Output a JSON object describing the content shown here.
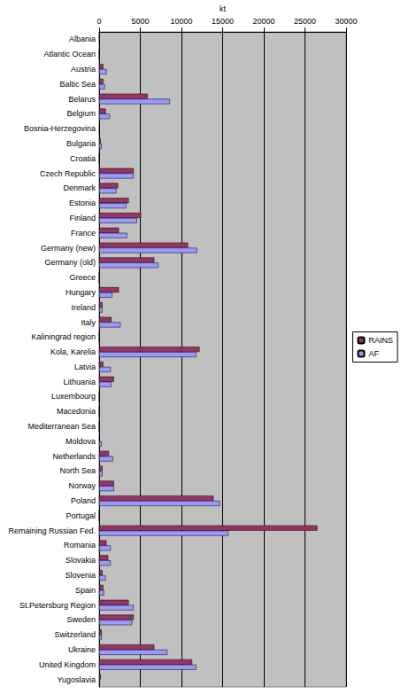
{
  "chart_data": {
    "type": "bar",
    "orientation": "horizontal",
    "xlabel": "kt",
    "categories": [
      "Albania",
      "Atlantic Ocean",
      "Austria",
      "Baltic Sea",
      "Belarus",
      "Belgium",
      "Bosnia-Herzegovina",
      "Bulgaria",
      "Croatia",
      "Czech Republic",
      "Denmark",
      "Estonia",
      "Finland",
      "France",
      "Germany (new)",
      "Germany (old)",
      "Greece",
      "Hungary",
      "Ireland",
      "Italy",
      "Kaliningrad region",
      "Kola, Karelia",
      "Latvia",
      "Lithuania",
      "Luxembourg",
      "Macedonia",
      "Mediterranean Sea",
      "Moldova",
      "Netherlands",
      "North Sea",
      "Norway",
      "Poland",
      "Portugal",
      "Remaining Russian Fed.",
      "Romania",
      "Slovakia",
      "Slovenia",
      "Spain",
      "St.Petersburg Region",
      "Sweden",
      "Switzerland",
      "Ukraine",
      "United Kingdom",
      "Yugoslavia"
    ],
    "series": [
      {
        "name": "RAINS",
        "color": "#993366",
        "values": [
          30,
          0,
          500,
          500,
          5900,
          800,
          50,
          200,
          0,
          4200,
          2300,
          3600,
          5100,
          2400,
          10800,
          6700,
          0,
          2400,
          400,
          1500,
          0,
          12200,
          500,
          1800,
          0,
          0,
          0,
          50,
          1200,
          400,
          1800,
          13900,
          0,
          26500,
          900,
          1100,
          400,
          500,
          3600,
          4200,
          300,
          6700,
          11300,
          200
        ]
      },
      {
        "name": "AF",
        "color": "#9999ff",
        "values": [
          50,
          0,
          900,
          700,
          8600,
          1300,
          50,
          300,
          0,
          4200,
          2100,
          3300,
          4600,
          3400,
          11900,
          7200,
          0,
          1600,
          400,
          2600,
          0,
          11800,
          1400,
          1500,
          0,
          0,
          0,
          300,
          1700,
          400,
          1800,
          14700,
          0,
          15700,
          1400,
          1400,
          800,
          600,
          4200,
          4000,
          300,
          8300,
          11800,
          100
        ]
      }
    ],
    "xlim": [
      0,
      30000
    ],
    "xticks": [
      0,
      5000,
      10000,
      15000,
      20000,
      25000,
      30000
    ],
    "grid": true,
    "legend": "right"
  }
}
